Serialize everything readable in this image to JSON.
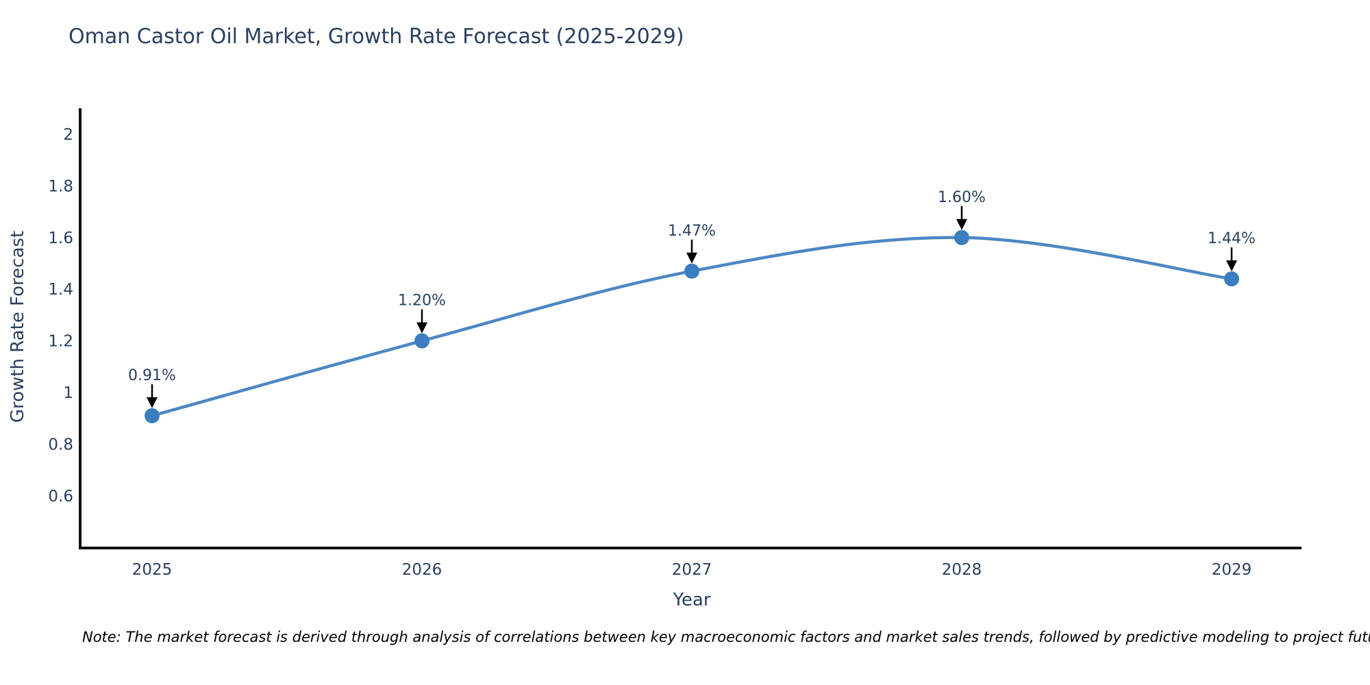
{
  "title": "Oman Castor Oil Market, Growth Rate Forecast (2025-2029)",
  "note": "Note: The market forecast is derived through analysis of correlations between key macroeconomic factors and market sales trends, followed by predictive modeling to project future sales",
  "chart_data": {
    "type": "line",
    "title": "Oman Castor Oil Market, Growth Rate Forecast (2025-2029)",
    "xlabel": "Year",
    "ylabel": "Growth Rate Forecast",
    "categories": [
      "2025",
      "2026",
      "2027",
      "2028",
      "2029"
    ],
    "series": [
      {
        "name": "Growth Rate Forecast",
        "values": [
          0.91,
          1.2,
          1.47,
          1.6,
          1.44
        ]
      }
    ],
    "point_labels": [
      "0.91%",
      "1.20%",
      "1.47%",
      "1.60%",
      "1.44%"
    ],
    "yticks": {
      "values": [
        2,
        1.8,
        1.6,
        1.4,
        1.2,
        1,
        0.8,
        0.6
      ],
      "labels": [
        "2",
        "1.8",
        "1.6",
        "1.4",
        "1.2",
        "1",
        "0.8",
        "0.6"
      ]
    },
    "ylim": [
      0.4,
      2.1
    ],
    "grid": false,
    "legend_position": "none",
    "line_shape": "spline",
    "colors": {
      "line": "#4d87c3",
      "marker": "#3a7ec0",
      "axis": "#111111",
      "text": "#2a3f5f",
      "annotation_arrow": "#000000",
      "note_text": "#000000",
      "background": "#ffffff"
    }
  }
}
